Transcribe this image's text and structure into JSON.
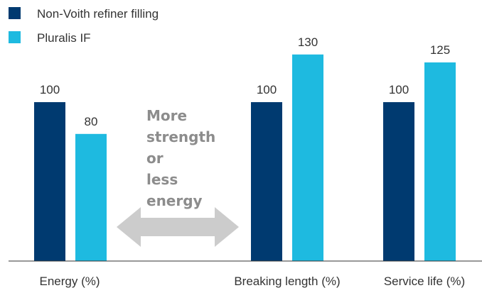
{
  "chart_data": {
    "type": "bar",
    "categories": [
      "Energy (%)",
      "Breaking length (%)",
      "Service life (%)"
    ],
    "series": [
      {
        "name": "Non-Voith refiner filling",
        "values": [
          100,
          100,
          100
        ],
        "color": "#003a70"
      },
      {
        "name": "Pluralis IF",
        "values": [
          80,
          130,
          125
        ],
        "color": "#1ebae0"
      }
    ],
    "value_labels": [
      [
        "100",
        "100",
        "100"
      ],
      [
        "80",
        "130",
        "125"
      ]
    ],
    "ylim": [
      0,
      150
    ],
    "grid": false,
    "legend": "top-left",
    "annotation": {
      "lines": [
        "More",
        "strength",
        "or",
        "less",
        "energy"
      ],
      "arrow": "double-headed horizontal",
      "arrow_color": "#cccccc"
    }
  }
}
